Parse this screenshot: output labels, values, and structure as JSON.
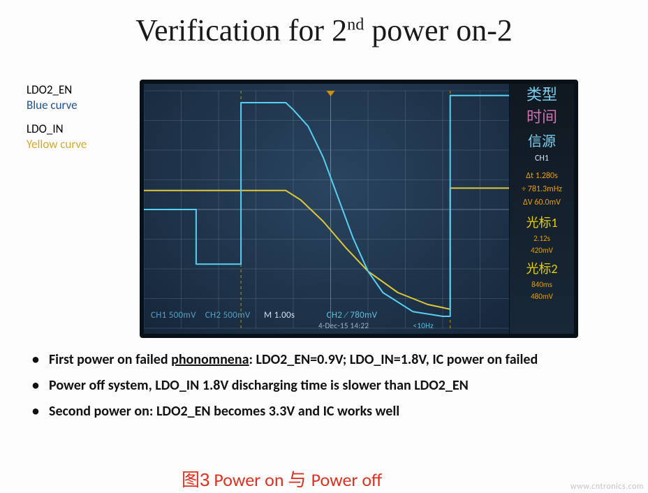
{
  "title_prefix": "Verification for 2",
  "title_sup": "nd",
  "title_suffix": " power on-2",
  "legend": {
    "sig1_name": "LDO2_EN",
    "sig1_color_label": "Blue curve",
    "sig2_name": "LDO_IN",
    "sig2_color_label": "Yellow curve"
  },
  "scope": {
    "grid_cols": 10,
    "grid_rows": 8,
    "bg_color_center": "#2a4560",
    "bg_color_edge": "#16263a",
    "grid_color": "rgba(170,200,220,0.18)",
    "trace_blue": {
      "color": "#58d0f0",
      "width": 2,
      "points": [
        [
          0.0,
          0.5
        ],
        [
          0.14,
          0.5
        ],
        [
          0.14,
          0.73
        ],
        [
          0.26,
          0.73
        ],
        [
          0.26,
          0.05
        ],
        [
          0.38,
          0.05
        ],
        [
          0.4,
          0.08
        ],
        [
          0.44,
          0.15
        ],
        [
          0.48,
          0.28
        ],
        [
          0.52,
          0.45
        ],
        [
          0.56,
          0.62
        ],
        [
          0.6,
          0.76
        ],
        [
          0.64,
          0.85
        ],
        [
          0.72,
          0.93
        ],
        [
          0.8,
          0.95
        ],
        [
          0.82,
          0.95
        ],
        [
          0.82,
          0.02
        ],
        [
          1.0,
          0.02
        ]
      ]
    },
    "trace_yellow": {
      "color": "#e0c838",
      "width": 2,
      "points": [
        [
          0.0,
          0.42
        ],
        [
          0.38,
          0.42
        ],
        [
          0.42,
          0.46
        ],
        [
          0.48,
          0.55
        ],
        [
          0.54,
          0.66
        ],
        [
          0.6,
          0.76
        ],
        [
          0.68,
          0.85
        ],
        [
          0.76,
          0.9
        ],
        [
          0.82,
          0.92
        ],
        [
          0.82,
          0.41
        ],
        [
          1.0,
          0.41
        ]
      ]
    },
    "cursor_positions": [
      0.26,
      0.82
    ],
    "cursor_color": "#d09000",
    "readouts": {
      "ch1": "CH1  500mV",
      "ch2": "CH2  500mV",
      "timebase": "M 1.00s",
      "date": "4-Dec-15 14:22",
      "trig": "CH2 ∕ 780mV",
      "trig2": "<10Hz"
    },
    "side": {
      "type_label": "类型",
      "time_label": "时间",
      "source_label": "信源",
      "source_value": "CH1",
      "delta_t": "Δt 1.280s",
      "freq": "÷ 781.3mHz",
      "delta_v": "ΔV 60.0mV",
      "cursor1_label": "光标1",
      "cursor1_t": "2.12s",
      "cursor1_v": "420mV",
      "cursor2_label": "光标2",
      "cursor2_t": "840ms",
      "cursor2_v": "480mV"
    }
  },
  "bullets": [
    {
      "pre": "First power on failed ",
      "u": "phonomnena",
      "post": ": LDO2_EN=0.9V; LDO_IN=1.8V, IC power on failed"
    },
    {
      "pre": "Power off system,  LDO_IN 1.8V discharging time is slower than LDO2_EN",
      "u": "",
      "post": ""
    },
    {
      "pre": "Second power on: LDO2_EN becomes 3.3V and IC works well",
      "u": "",
      "post": ""
    }
  ],
  "caption": {
    "zh1": "图3",
    "en1": " Power on ",
    "zh2": " 与 ",
    "en2": " Power off"
  },
  "watermark": "www.cntronics.com"
}
